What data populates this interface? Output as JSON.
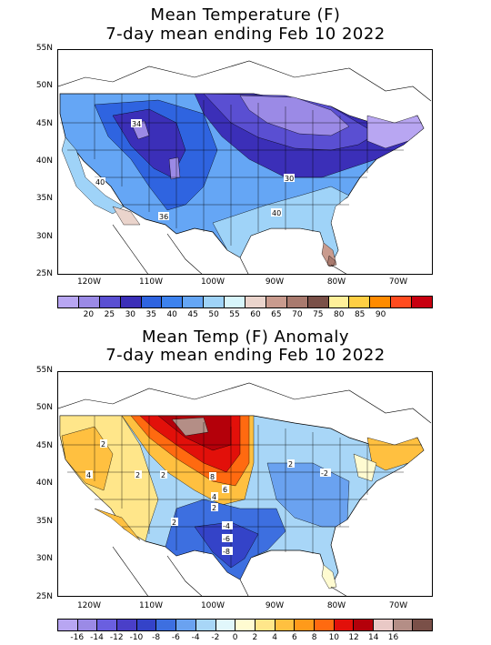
{
  "top_panel": {
    "title_line1": "Mean Temperature (F)",
    "title_line2": "7-day mean ending Feb 10 2022",
    "lat_labels": [
      "55N",
      "50N",
      "45N",
      "40N",
      "35N",
      "30N",
      "25N"
    ],
    "lon_labels": [
      "120W",
      "110W",
      "100W",
      "90W",
      "80W",
      "70W"
    ],
    "contour_labels": [
      "34",
      "40",
      "36",
      "30",
      "40"
    ],
    "colorbar_labels": [
      "20",
      "25",
      "30",
      "35",
      "40",
      "45",
      "50",
      "55",
      "60",
      "65",
      "70",
      "75",
      "80",
      "85",
      "90"
    ],
    "colorbar_colors": [
      "#b8a6f2",
      "#9b8ae6",
      "#5a4fd2",
      "#3b2fb8",
      "#2f64e0",
      "#3d82ee",
      "#65a6f5",
      "#9fd3f8",
      "#d7f5fb",
      "#ead4cc",
      "#c99b8e",
      "#a97a6e",
      "#7a5048",
      "#fff09a",
      "#ffcf44",
      "#ff8b00",
      "#ff4b1f",
      "#c80010"
    ]
  },
  "bottom_panel": {
    "title_line1": "Mean Temp (F) Anomaly",
    "title_line2": "7-day mean ending Feb 10 2022",
    "lat_labels": [
      "55N",
      "50N",
      "45N",
      "40N",
      "35N",
      "30N",
      "25N"
    ],
    "lon_labels": [
      "120W",
      "110W",
      "100W",
      "90W",
      "80W",
      "70W"
    ],
    "contour_labels": [
      "2",
      "4",
      "2",
      "2",
      "8",
      "6",
      "4",
      "2",
      "2",
      "-4",
      "-6",
      "-8",
      "-2",
      "2"
    ],
    "colorbar_labels": [
      "-16",
      "-14",
      "-12",
      "-10",
      "-8",
      "-6",
      "-4",
      "-2",
      "0",
      "2",
      "4",
      "6",
      "8",
      "10",
      "12",
      "14",
      "16"
    ],
    "colorbar_colors": [
      "#b8a6f2",
      "#9b8ae6",
      "#6a5fe0",
      "#4a3fc8",
      "#3443c8",
      "#3d6fe0",
      "#6aa2f0",
      "#a8d6f7",
      "#e1f7fb",
      "#fffbd1",
      "#ffe68a",
      "#ffc040",
      "#ff9a1a",
      "#ff6a10",
      "#e2100a",
      "#b4000a",
      "#e9c9c6",
      "#b48e86",
      "#7a5048"
    ]
  }
}
